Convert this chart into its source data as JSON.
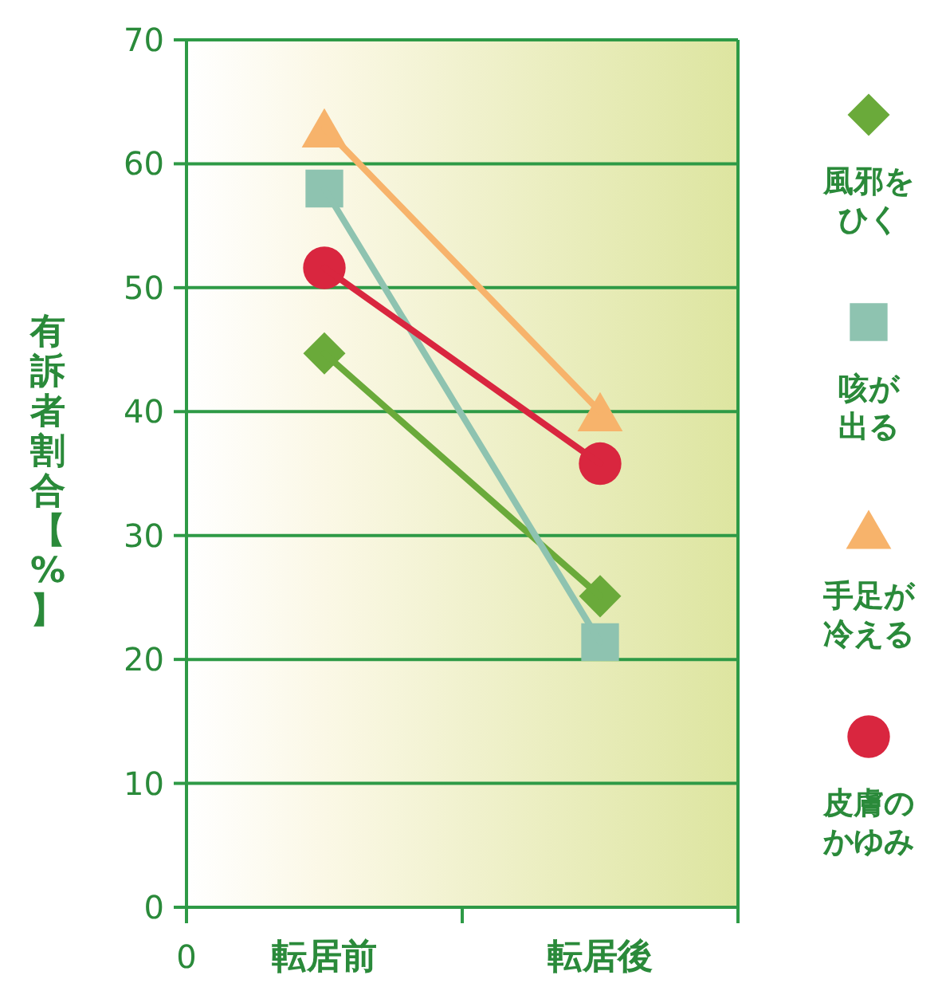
{
  "chart_data": {
    "type": "line",
    "ylabel": "有訴者割合【%】",
    "categories": [
      "転居前",
      "転居後"
    ],
    "ylim": [
      0,
      70
    ],
    "yticks": [
      0,
      10,
      20,
      30,
      40,
      50,
      60,
      70
    ],
    "grid": "y",
    "legend": "right",
    "annotations": [
      "0"
    ],
    "series": [
      {
        "name": "風邪をひく",
        "color": "#6aaa3a",
        "marker": "diamond",
        "values": [
          44.7,
          25.1
        ]
      },
      {
        "name": "咳が出る",
        "color": "#8ec3b0",
        "marker": "square",
        "values": [
          58.0,
          21.4
        ]
      },
      {
        "name": "手足が冷える",
        "color": "#f7b36b",
        "marker": "triangle",
        "values": [
          62.9,
          40.0
        ]
      },
      {
        "name": "皮膚のかゆみ",
        "color": "#d9263f",
        "marker": "circle",
        "values": [
          51.6,
          35.8
        ]
      }
    ]
  }
}
